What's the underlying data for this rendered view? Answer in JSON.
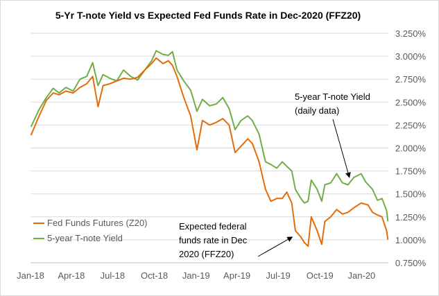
{
  "chart_data": {
    "type": "line",
    "title": "5-Yr T-note Yield vs Expected Fed Funds Rate in Dec-2020 (FFZ20)",
    "xlabel": "",
    "ylabel": "",
    "x_tick_labels": [
      "Jan-18",
      "Apr-18",
      "Jul-18",
      "Oct-18",
      "Jan-19",
      "Apr-19",
      "Jul-19",
      "Oct-19",
      "Jan-20"
    ],
    "y_tick_labels": [
      "0.750%",
      "1.000%",
      "1.250%",
      "1.500%",
      "1.750%",
      "2.000%",
      "2.250%",
      "2.500%",
      "2.750%",
      "3.000%",
      "3.250%"
    ],
    "ylim": [
      0.75,
      3.25
    ],
    "y_axis_side": "right",
    "grid": "horizontal",
    "legend_position": "bottom-left",
    "x_time_range": [
      "2018-01",
      "2020-02"
    ],
    "series": [
      {
        "name": "Fed Funds Futures (Z20)",
        "color": "#E46C0A",
        "points": [
          [
            "2018-01-02",
            2.14
          ],
          [
            "2018-01-20",
            2.35
          ],
          [
            "2018-02-05",
            2.52
          ],
          [
            "2018-02-20",
            2.6
          ],
          [
            "2018-03-05",
            2.58
          ],
          [
            "2018-03-20",
            2.62
          ],
          [
            "2018-04-05",
            2.6
          ],
          [
            "2018-04-20",
            2.66
          ],
          [
            "2018-05-05",
            2.7
          ],
          [
            "2018-05-18",
            2.78
          ],
          [
            "2018-05-30",
            2.45
          ],
          [
            "2018-06-10",
            2.68
          ],
          [
            "2018-06-25",
            2.7
          ],
          [
            "2018-07-10",
            2.73
          ],
          [
            "2018-07-25",
            2.76
          ],
          [
            "2018-08-10",
            2.75
          ],
          [
            "2018-08-25",
            2.77
          ],
          [
            "2018-09-10",
            2.85
          ],
          [
            "2018-09-25",
            2.92
          ],
          [
            "2018-10-05",
            2.98
          ],
          [
            "2018-10-20",
            2.92
          ],
          [
            "2018-11-01",
            2.95
          ],
          [
            "2018-11-10",
            2.9
          ],
          [
            "2018-11-20",
            2.78
          ],
          [
            "2018-12-05",
            2.55
          ],
          [
            "2018-12-20",
            2.35
          ],
          [
            "2019-01-03",
            1.98
          ],
          [
            "2019-01-15",
            2.3
          ],
          [
            "2019-01-31",
            2.25
          ],
          [
            "2019-02-15",
            2.28
          ],
          [
            "2019-03-01",
            2.32
          ],
          [
            "2019-03-15",
            2.25
          ],
          [
            "2019-03-28",
            1.95
          ],
          [
            "2019-04-10",
            2.02
          ],
          [
            "2019-04-25",
            2.1
          ],
          [
            "2019-05-05",
            2.05
          ],
          [
            "2019-05-20",
            1.85
          ],
          [
            "2019-06-03",
            1.55
          ],
          [
            "2019-06-15",
            1.42
          ],
          [
            "2019-06-28",
            1.45
          ],
          [
            "2019-07-10",
            1.45
          ],
          [
            "2019-07-20",
            1.52
          ],
          [
            "2019-07-31",
            1.4
          ],
          [
            "2019-08-08",
            1.1
          ],
          [
            "2019-08-20",
            1.03
          ],
          [
            "2019-08-28",
            0.97
          ],
          [
            "2019-09-05",
            0.93
          ],
          [
            "2019-09-12",
            1.25
          ],
          [
            "2019-09-25",
            1.1
          ],
          [
            "2019-10-05",
            0.95
          ],
          [
            "2019-10-12",
            1.2
          ],
          [
            "2019-10-25",
            1.25
          ],
          [
            "2019-11-07",
            1.33
          ],
          [
            "2019-11-20",
            1.28
          ],
          [
            "2019-12-02",
            1.3
          ],
          [
            "2019-12-15",
            1.35
          ],
          [
            "2019-12-31",
            1.4
          ],
          [
            "2020-01-15",
            1.38
          ],
          [
            "2020-01-25",
            1.3
          ],
          [
            "2020-02-05",
            1.27
          ],
          [
            "2020-02-15",
            1.25
          ],
          [
            "2020-02-25",
            1.1
          ],
          [
            "2020-02-28",
            1.0
          ]
        ]
      },
      {
        "name": "5-year T-note Yield",
        "color": "#70AD47",
        "points": [
          [
            "2018-01-02",
            2.23
          ],
          [
            "2018-01-20",
            2.42
          ],
          [
            "2018-02-05",
            2.55
          ],
          [
            "2018-02-20",
            2.65
          ],
          [
            "2018-03-05",
            2.6
          ],
          [
            "2018-03-20",
            2.66
          ],
          [
            "2018-04-05",
            2.62
          ],
          [
            "2018-04-20",
            2.75
          ],
          [
            "2018-05-05",
            2.78
          ],
          [
            "2018-05-18",
            2.93
          ],
          [
            "2018-05-30",
            2.68
          ],
          [
            "2018-06-10",
            2.8
          ],
          [
            "2018-06-25",
            2.76
          ],
          [
            "2018-07-10",
            2.73
          ],
          [
            "2018-07-25",
            2.85
          ],
          [
            "2018-08-10",
            2.78
          ],
          [
            "2018-08-25",
            2.74
          ],
          [
            "2018-09-10",
            2.85
          ],
          [
            "2018-09-25",
            2.95
          ],
          [
            "2018-10-05",
            3.06
          ],
          [
            "2018-10-20",
            3.02
          ],
          [
            "2018-11-01",
            3.01
          ],
          [
            "2018-11-10",
            3.05
          ],
          [
            "2018-11-20",
            2.85
          ],
          [
            "2018-12-05",
            2.73
          ],
          [
            "2018-12-20",
            2.63
          ],
          [
            "2019-01-03",
            2.4
          ],
          [
            "2019-01-15",
            2.53
          ],
          [
            "2019-01-31",
            2.46
          ],
          [
            "2019-02-15",
            2.48
          ],
          [
            "2019-03-01",
            2.55
          ],
          [
            "2019-03-15",
            2.43
          ],
          [
            "2019-03-28",
            2.2
          ],
          [
            "2019-04-10",
            2.3
          ],
          [
            "2019-04-25",
            2.35
          ],
          [
            "2019-05-05",
            2.3
          ],
          [
            "2019-05-20",
            2.15
          ],
          [
            "2019-06-03",
            1.85
          ],
          [
            "2019-06-15",
            1.82
          ],
          [
            "2019-06-28",
            1.78
          ],
          [
            "2019-07-10",
            1.85
          ],
          [
            "2019-07-20",
            1.8
          ],
          [
            "2019-07-31",
            1.75
          ],
          [
            "2019-08-08",
            1.55
          ],
          [
            "2019-08-20",
            1.45
          ],
          [
            "2019-08-28",
            1.4
          ],
          [
            "2019-09-05",
            1.42
          ],
          [
            "2019-09-12",
            1.65
          ],
          [
            "2019-09-25",
            1.55
          ],
          [
            "2019-10-05",
            1.42
          ],
          [
            "2019-10-12",
            1.6
          ],
          [
            "2019-10-25",
            1.62
          ],
          [
            "2019-11-07",
            1.72
          ],
          [
            "2019-11-20",
            1.62
          ],
          [
            "2019-12-02",
            1.6
          ],
          [
            "2019-12-15",
            1.68
          ],
          [
            "2019-12-31",
            1.72
          ],
          [
            "2020-01-10",
            1.63
          ],
          [
            "2020-01-25",
            1.55
          ],
          [
            "2020-02-05",
            1.43
          ],
          [
            "2020-02-15",
            1.45
          ],
          [
            "2020-02-25",
            1.32
          ],
          [
            "2020-02-28",
            1.2
          ]
        ]
      }
    ],
    "annotations": [
      {
        "lines": [
          "5-year T-note Yield",
          "(daily data)"
        ],
        "target": [
          "2019-12-05",
          1.68
        ]
      },
      {
        "lines": [
          "Expected federal",
          "funds rate in Dec",
          "2020 (FFZ20)"
        ],
        "target": [
          "2019-08-01",
          1.03
        ]
      }
    ]
  }
}
